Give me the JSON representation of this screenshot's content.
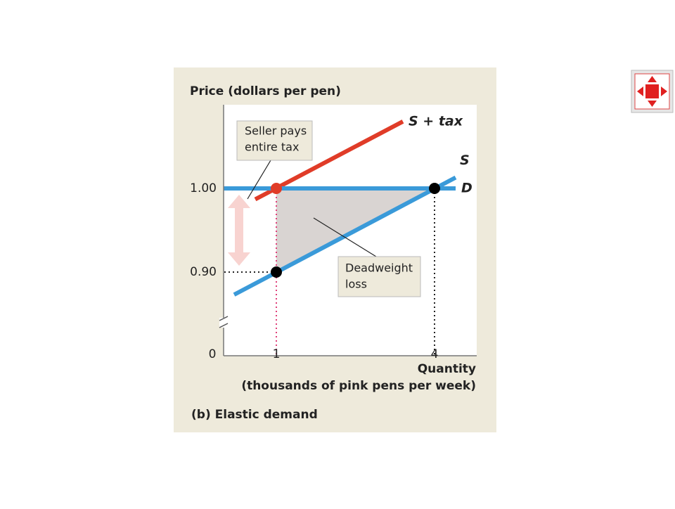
{
  "chart_data": {
    "type": "line",
    "title": "(b) Elastic demand",
    "y_label": "Price (dollars per pen)",
    "x_label": [
      "Quantity",
      "(thousands of pink pens per week)"
    ],
    "xlim": [
      0,
      4.8
    ],
    "ylim": [
      0.8,
      1.1
    ],
    "xticks": [
      0,
      {
        "value": 1,
        "label": "1",
        "color": "#e03c28"
      },
      4
    ],
    "yticks": [
      {
        "value": 0.9,
        "label": "0.90"
      },
      {
        "value": 1.0,
        "label": "1.00",
        "color": "#e03c28"
      }
    ],
    "series": [
      {
        "name": "S + tax",
        "color": "#e03c28",
        "x": [
          0.6,
          3.4
        ],
        "values": [
          0.987,
          1.08
        ]
      },
      {
        "name": "S",
        "color": "#3a9ad9",
        "x": [
          0.2,
          4.4
        ],
        "values": [
          0.873,
          1.013
        ]
      },
      {
        "name": "D",
        "color": "#3a9ad9",
        "x": [
          0,
          4.4
        ],
        "values": [
          1.0,
          1.0
        ]
      }
    ],
    "points": [
      {
        "x": 1,
        "y": 1.0,
        "color": "#e03c28"
      },
      {
        "x": 4,
        "y": 1.0,
        "color": "#000000"
      },
      {
        "x": 1,
        "y": 0.9,
        "color": "#000000"
      }
    ],
    "region": {
      "x": [
        1,
        4,
        1
      ],
      "y": [
        1.0,
        1.0,
        0.9
      ],
      "color": "#d9d4d2"
    },
    "annotations": [
      {
        "text": [
          "Seller pays",
          "entire tax"
        ]
      },
      {
        "text": [
          "Deadweight",
          "loss"
        ]
      }
    ]
  }
}
